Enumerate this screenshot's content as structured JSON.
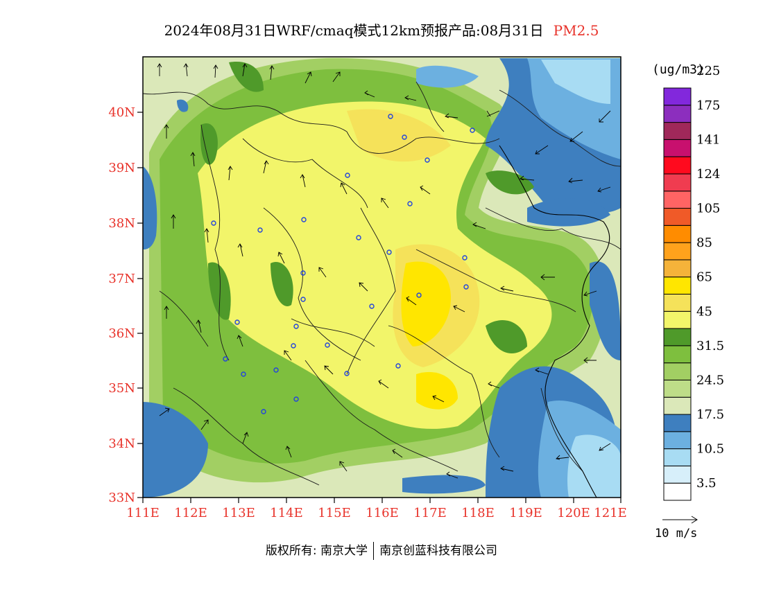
{
  "header": {
    "title": "2024年08月31日WRF/cmaq模式12km预报产品:08月31日",
    "species": "PM2.5"
  },
  "map": {
    "lat_labels": [
      "40N",
      "39N",
      "38N",
      "37N",
      "36N",
      "35N",
      "34N",
      "33N"
    ],
    "lon_labels": [
      "111E",
      "112E",
      "113E",
      "114E",
      "115E",
      "116E",
      "117E",
      "118E",
      "119E",
      "120E",
      "121E"
    ],
    "axis_label_color": "#e8322a"
  },
  "legend": {
    "unit": "(ug/m3)",
    "colors": [
      "#ffffff",
      "#d7effa",
      "#a8dcf3",
      "#6cb0e0",
      "#3e7fbf",
      "#dbe8b9",
      "#bedd88",
      "#a2cf63",
      "#7ebf3e",
      "#4f9a2a",
      "#f2f56a",
      "#f5e25a",
      "#ffe600",
      "#f5b33a",
      "#ffa21c",
      "#ff8c00",
      "#f05a28",
      "#ff6464",
      "#f03c50",
      "#ff0a1e",
      "#c8106e",
      "#a0285a",
      "#8c2ebe",
      "#8228dc"
    ],
    "labels": [
      "3.5",
      "10.5",
      "17.5",
      "24.5",
      "31.5",
      "45",
      "65",
      "85",
      "105",
      "124",
      "141",
      "175",
      "225"
    ]
  },
  "wind_reference": {
    "label": "10 m/s"
  },
  "footer": {
    "copyright_left": "版权所有: 南京大学",
    "copyright_right": "南京创蓝科技有限公司"
  }
}
